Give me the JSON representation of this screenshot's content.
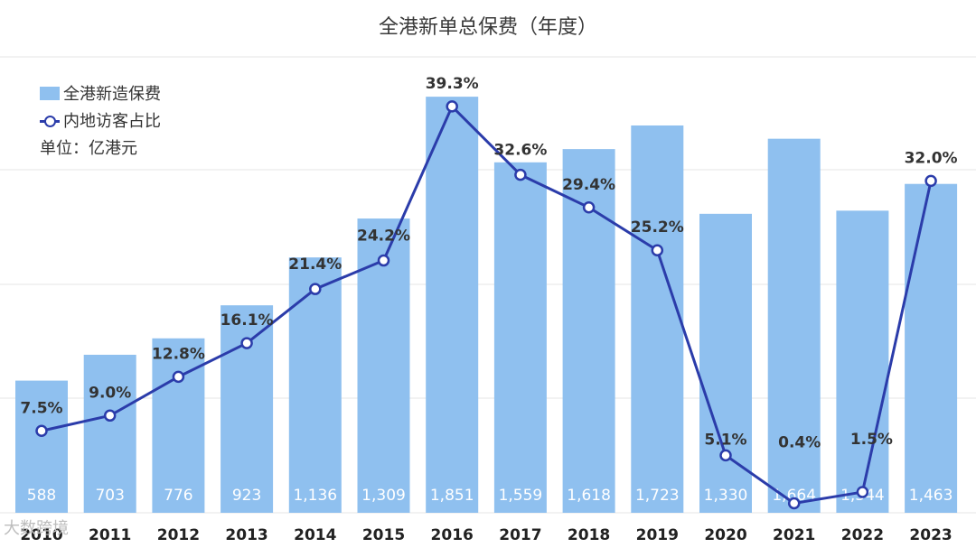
{
  "title": "全港新单总保费（年度）",
  "legend": {
    "bar_series": "全港新造保费",
    "line_series": "内地访客占比",
    "unit": "单位：亿港元"
  },
  "watermark": "大数跨境",
  "colors": {
    "bar": "#8fc0ef",
    "line": "#2b3caa",
    "grid": "#e4e4e4"
  },
  "chart_data": {
    "type": "bar",
    "title": "全港新单总保费（年度）",
    "categories": [
      "2010",
      "2011",
      "2012",
      "2013",
      "2014",
      "2015",
      "2016",
      "2017",
      "2018",
      "2019",
      "2020",
      "2021",
      "2022",
      "2023"
    ],
    "series": [
      {
        "name": "全港新造保费",
        "type": "bar",
        "values": [
          588,
          703,
          776,
          923,
          1136,
          1309,
          1851,
          1559,
          1618,
          1723,
          1330,
          1664,
          1344,
          1463
        ],
        "labels": [
          "588",
          "703",
          "776",
          "923",
          "1,136",
          "1,309",
          "1,851",
          "1,559",
          "1,618",
          "1,723",
          "1,330",
          "1,664",
          "1,344",
          "1,463"
        ]
      },
      {
        "name": "内地访客占比",
        "type": "line",
        "values": [
          7.5,
          9.0,
          12.8,
          16.1,
          21.4,
          24.2,
          39.3,
          32.6,
          29.4,
          25.2,
          5.1,
          0.4,
          1.5,
          32.0
        ],
        "labels": [
          "7.5%",
          "9.0%",
          "12.8%",
          "16.1%",
          "21.4%",
          "24.2%",
          "39.3%",
          "32.6%",
          "29.4%",
          "25.2%",
          "5.1%",
          "0.4%",
          "1.5%",
          "32.0%"
        ]
      }
    ],
    "ylim": [
      0,
      2000
    ],
    "y2lim": [
      0,
      45
    ],
    "grid": true,
    "legend_position": "top-left"
  }
}
